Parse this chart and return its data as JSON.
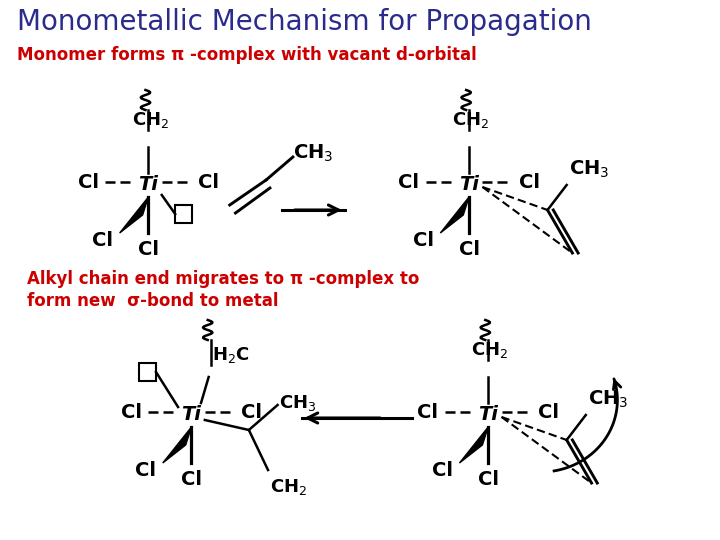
{
  "title": "Monometallic Mechanism for Propagation",
  "subtitle1": "Monomer forms π -complex with vacant d-orbital",
  "subtitle2_part1": "Alkyl chain end migrates to π -complex to",
  "subtitle2_part2": "form new  σ-bond to metal",
  "title_color": "#2B2B8C",
  "subtitle1_color": "#CC0000",
  "subtitle2_color": "#CC0000",
  "bg_color": "#FFFFFF",
  "struct_color": "#000000",
  "title_fontsize": 20,
  "subtitle_fontsize": 12,
  "chem_fontsize": 13
}
